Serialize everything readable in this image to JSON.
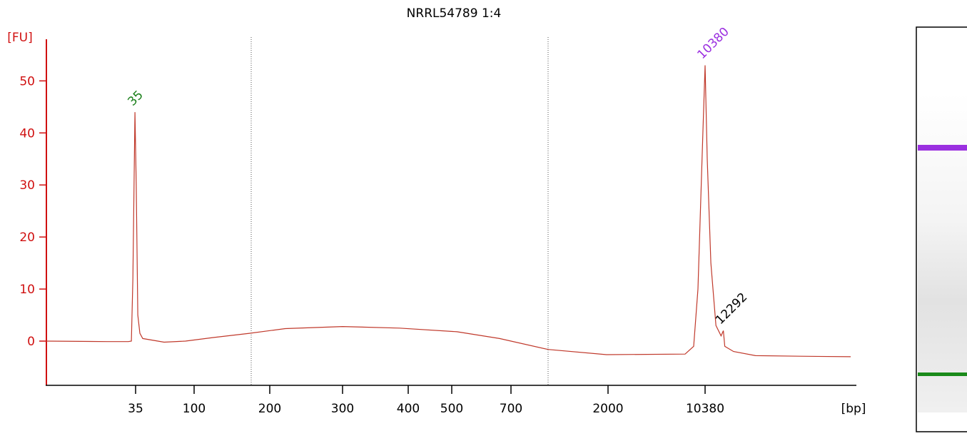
{
  "chart_data": {
    "type": "line",
    "title": "NRRL54789 1:4",
    "y_label": "[FU]",
    "x_label": "[bp]",
    "log_x": true,
    "xlim": [
      10,
      40000
    ],
    "xticks": [
      35,
      100,
      200,
      300,
      400,
      500,
      700,
      2000,
      10380
    ],
    "ylim": [
      -8.5,
      58
    ],
    "yticks": [
      0,
      10,
      20,
      30,
      40,
      50
    ],
    "series": [
      {
        "color": "#c0392b",
        "x": [
          10,
          23.4,
          31.6,
          33,
          33.7,
          34.7,
          35.4,
          36.4,
          37.8,
          39.8,
          58.3,
          85.7,
          120,
          166,
          218,
          300,
          385,
          515,
          656,
          1045,
          1968,
          7396,
          8550,
          9200,
          10000,
          10380,
          10590,
          10950,
          11480,
          12040,
          12292,
          12460,
          13510,
          16560,
          24840,
          40000
        ],
        "values": [
          0,
          -0.1,
          -0.1,
          0,
          12,
          44,
          30,
          5,
          1.5,
          0.5,
          -0.2,
          0,
          0.7,
          1.5,
          2.4,
          2.8,
          2.5,
          1.8,
          0.5,
          -1.6,
          -2.6,
          -2.5,
          -1,
          10,
          40,
          53,
          35,
          15,
          3,
          1,
          2,
          -1,
          -2,
          -2.8,
          -2.9,
          -3
        ]
      }
    ],
    "annotations": [
      {
        "x": 35,
        "y": 44,
        "color": "#1a7f1a"
      },
      {
        "x": 10380,
        "y": 53,
        "color": "#9b30e0"
      },
      {
        "x": 12292,
        "y": 2,
        "color": "#000000"
      }
    ]
  }
}
